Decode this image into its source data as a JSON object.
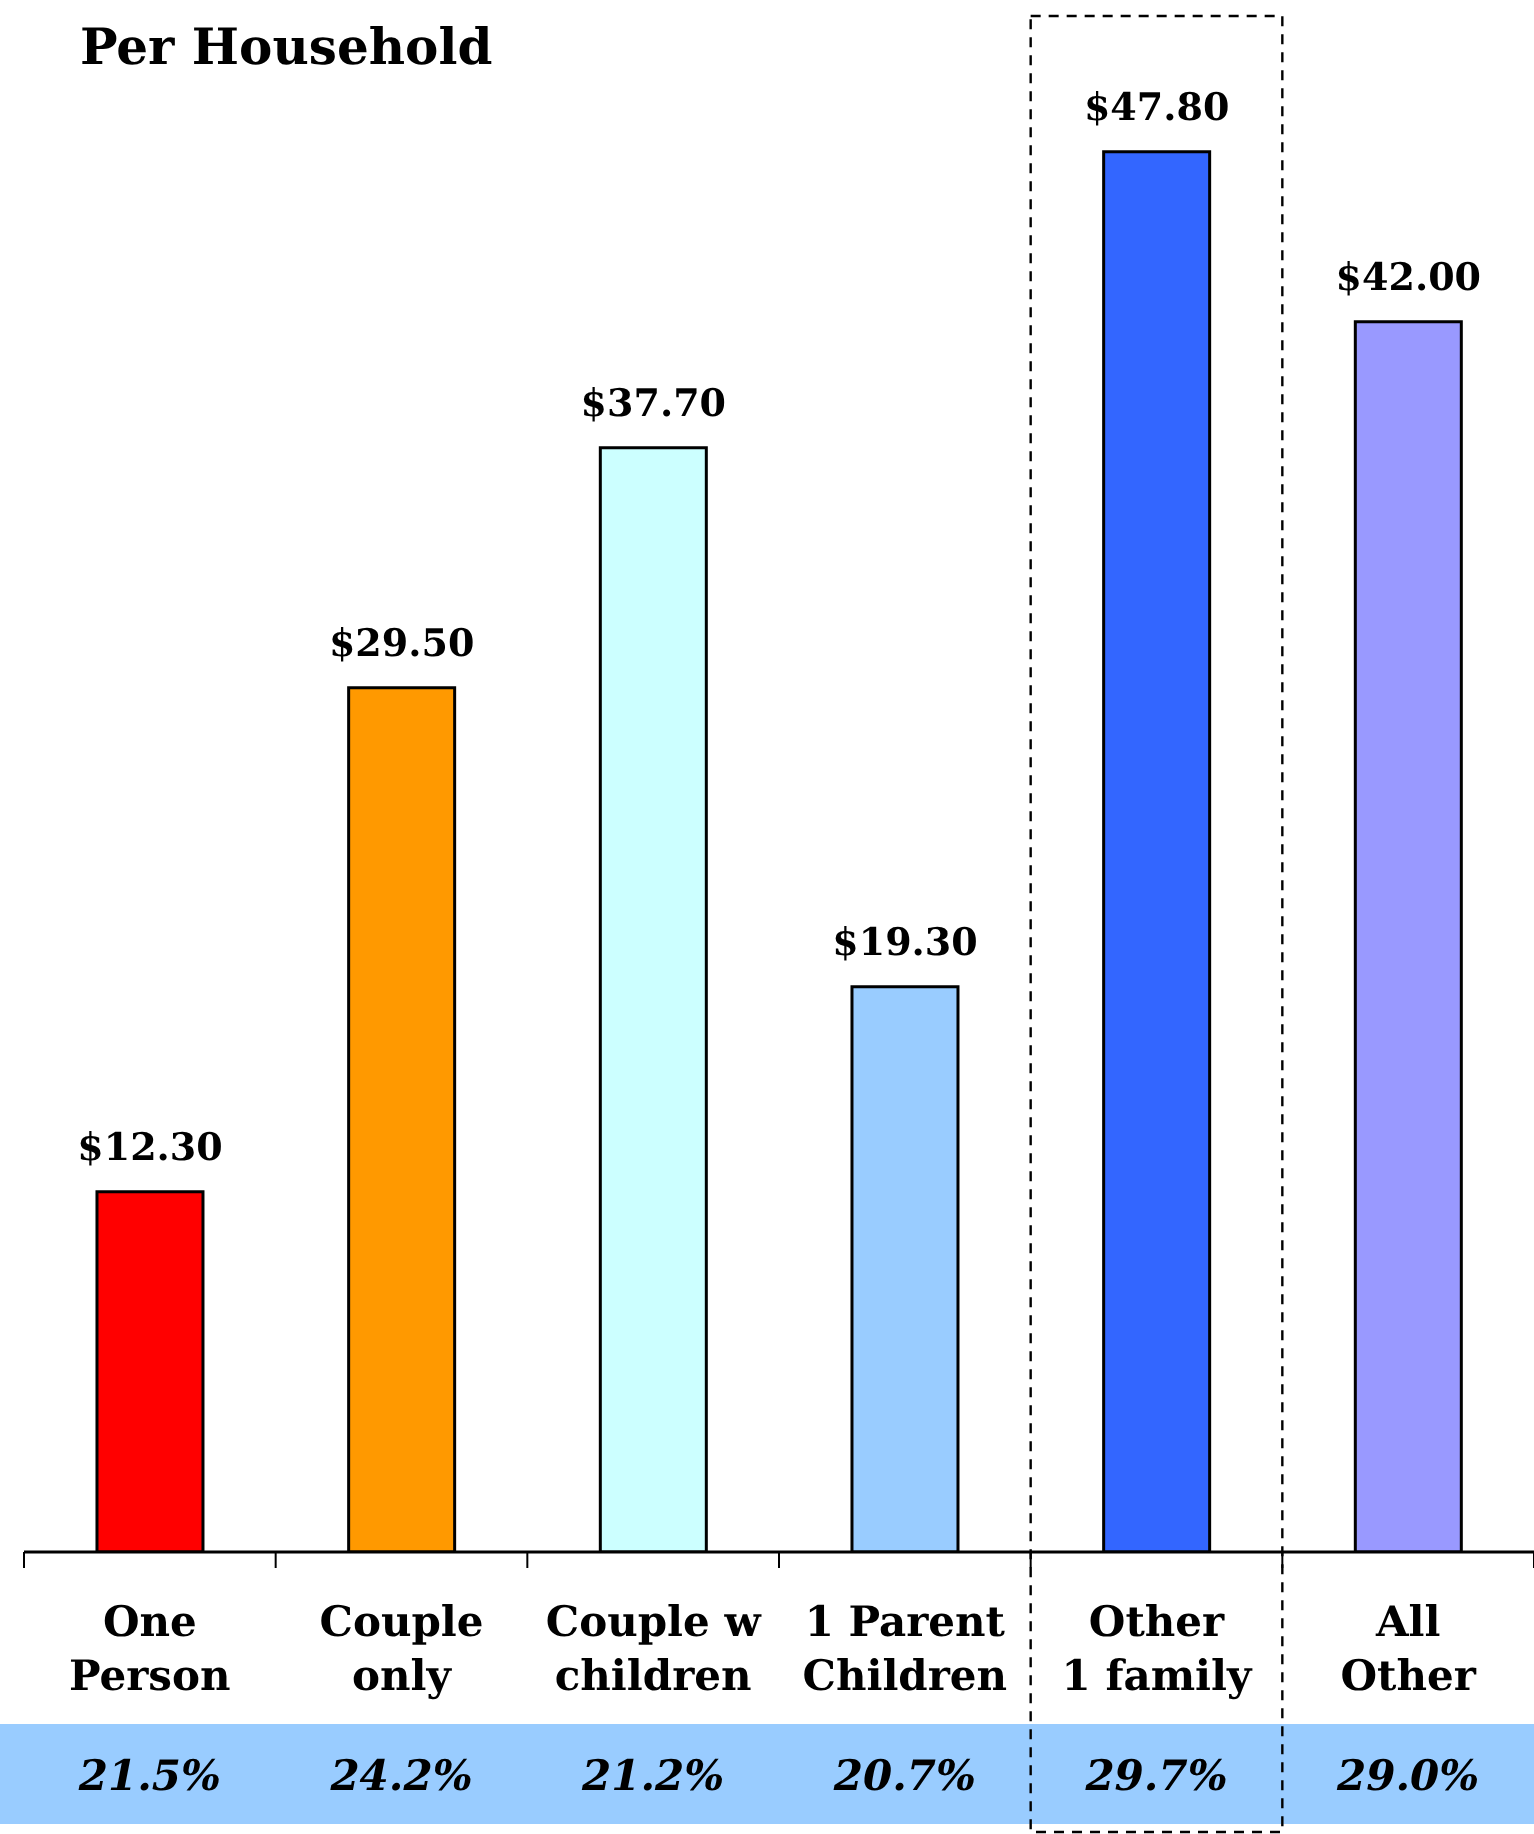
{
  "chart_data": {
    "type": "bar",
    "title": "Per Household",
    "categories": [
      "One\nPerson",
      "Couple\nonly",
      "Couple w\nchildren",
      "1 Parent\nChildren",
      "Other\n1 family",
      "All\nOther"
    ],
    "values": [
      12.3,
      29.5,
      37.7,
      19.3,
      47.8,
      42.0
    ],
    "colors": [
      "#ff0000",
      "#ff9900",
      "#ccffff",
      "#99ccff",
      "#3366ff",
      "#9999ff"
    ],
    "value_labels": [
      "$12.30",
      "$29.50",
      "$37.70",
      "$19.30",
      "$47.80",
      "$42.00"
    ],
    "annotations": [
      "21.5%",
      "24.2%",
      "21.2%",
      "20.7%",
      "29.7%",
      "29.0%"
    ],
    "tick_labels": "x"
  }
}
